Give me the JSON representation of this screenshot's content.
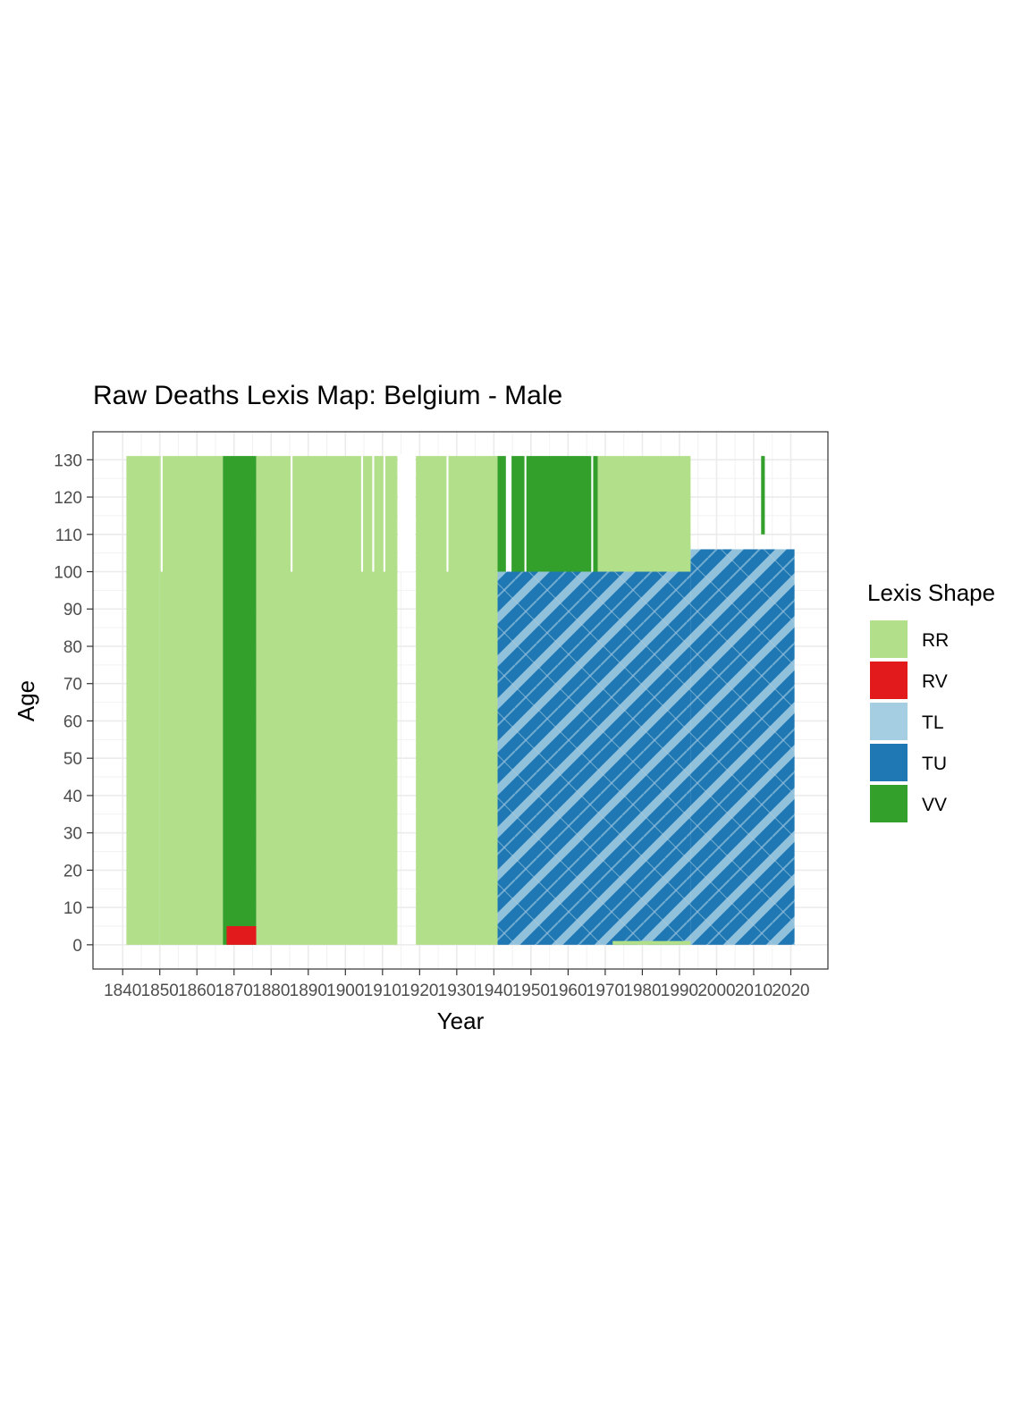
{
  "chart_data": {
    "type": "heatmap",
    "title": "Raw Deaths Lexis Map: Belgium - Male",
    "xlabel": "Year",
    "ylabel": "Age",
    "xlim": [
      1832,
      2030
    ],
    "ylim": [
      -6.5,
      137.5
    ],
    "x_ticks": [
      1840,
      1850,
      1860,
      1870,
      1880,
      1890,
      1900,
      1910,
      1920,
      1930,
      1940,
      1950,
      1960,
      1970,
      1980,
      1990,
      2000,
      2010,
      2020
    ],
    "y_ticks": [
      0,
      10,
      20,
      30,
      40,
      50,
      60,
      70,
      80,
      90,
      100,
      110,
      120,
      130
    ],
    "grid": true,
    "legend": {
      "title": "Lexis Shape",
      "position": "right",
      "entries": [
        {
          "label": "RR",
          "color": "#b2df8a"
        },
        {
          "label": "RV",
          "color": "#e31a1c"
        },
        {
          "label": "TL",
          "color": "#a6cee3"
        },
        {
          "label": "TU",
          "color": "#1f78b4"
        },
        {
          "label": "VV",
          "color": "#33a02c"
        }
      ]
    },
    "regions": [
      {
        "shape": "RR",
        "year_start": 1841,
        "year_end": 1850,
        "age_start": 0,
        "age_end": 131
      },
      {
        "shape": "RR",
        "year_start": 1850,
        "year_end": 1867,
        "age_start": 0,
        "age_end": 131
      },
      {
        "shape": "VV",
        "year_start": 1867,
        "year_end": 1876,
        "age_start": 0,
        "age_end": 131
      },
      {
        "shape": "RV",
        "year_start": 1868,
        "year_end": 1876,
        "age_start": 0,
        "age_end": 5
      },
      {
        "shape": "RR",
        "year_start": 1876,
        "year_end": 1914,
        "age_start": 0,
        "age_end": 131
      },
      {
        "shape": "RR",
        "year_start": 1919,
        "year_end": 1941,
        "age_start": 0,
        "age_end": 131
      },
      {
        "shape": "VV",
        "year_start": 1941,
        "year_end": 1968,
        "age_start": 100,
        "age_end": 131
      },
      {
        "shape": "RR",
        "year_start": 1968,
        "year_end": 1993,
        "age_start": 100,
        "age_end": 131
      },
      {
        "shape": "TU",
        "year_start": 1941,
        "year_end": 1993,
        "age_start": 0,
        "age_end": 100
      },
      {
        "shape": "TU",
        "year_start": 1993,
        "year_end": 2021,
        "age_start": 0,
        "age_end": 106
      },
      {
        "shape": "RR",
        "year_start": 1972,
        "year_end": 1993,
        "age_start": 0,
        "age_end": 1
      },
      {
        "shape": "VV",
        "year_start": 2012,
        "year_end": 2013,
        "age_start": 110,
        "age_end": 131
      }
    ],
    "gaps": [
      {
        "year_start": 1850,
        "year_end": 1851,
        "age_start": 100,
        "age_end": 131
      },
      {
        "year_start": 1885,
        "year_end": 1886,
        "age_start": 100,
        "age_end": 131
      },
      {
        "year_start": 1904,
        "year_end": 1905,
        "age_start": 100,
        "age_end": 131
      },
      {
        "year_start": 1907,
        "year_end": 1908,
        "age_start": 100,
        "age_end": 131
      },
      {
        "year_start": 1910,
        "year_end": 1911,
        "age_start": 100,
        "age_end": 131
      },
      {
        "year_start": 1914,
        "year_end": 1919,
        "age_start": 100,
        "age_end": 131
      },
      {
        "year_start": 1927,
        "year_end": 1928,
        "age_start": 100,
        "age_end": 131
      },
      {
        "year_start": 1943,
        "year_end": 1945,
        "age_start": 100,
        "age_end": 131
      },
      {
        "year_start": 1948,
        "year_end": 1949,
        "age_start": 100,
        "age_end": 131
      },
      {
        "year_start": 1966,
        "year_end": 1967,
        "age_start": 100,
        "age_end": 131
      }
    ]
  }
}
